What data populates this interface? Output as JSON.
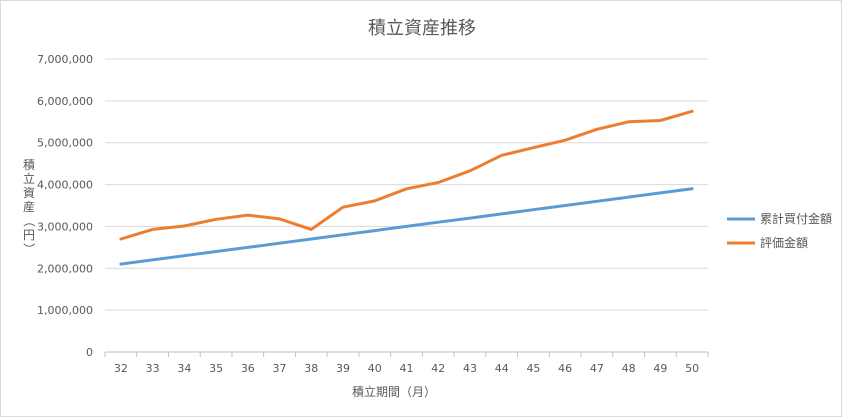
{
  "chart_data": {
    "type": "line",
    "title": "積立資産推移",
    "xlabel": "積立期間（月）",
    "ylabel": "積立資産（円）",
    "ylim": [
      0,
      7000000
    ],
    "y_ticks": [
      "0",
      "1,000,000",
      "2,000,000",
      "3,000,000",
      "4,000,000",
      "5,000,000",
      "6,000,000",
      "7,000,000"
    ],
    "categories": [
      "32",
      "33",
      "34",
      "35",
      "36",
      "37",
      "38",
      "39",
      "40",
      "41",
      "42",
      "43",
      "44",
      "45",
      "46",
      "47",
      "48",
      "49",
      "50"
    ],
    "grid": true,
    "legend_position": "right",
    "series": [
      {
        "name": "累計買付金額",
        "color": "#5B9BD5",
        "values": [
          2100000,
          2200000,
          2300000,
          2400000,
          2500000,
          2600000,
          2700000,
          2800000,
          2900000,
          3000000,
          3100000,
          3200000,
          3300000,
          3400000,
          3500000,
          3600000,
          3700000,
          3800000,
          3900000
        ]
      },
      {
        "name": "評価金額",
        "color": "#ED7D31",
        "values": [
          2700000,
          2930000,
          3010000,
          3170000,
          3270000,
          3180000,
          2930000,
          3460000,
          3610000,
          3900000,
          4050000,
          4330000,
          4700000,
          4880000,
          5060000,
          5320000,
          5500000,
          5530000,
          5750000
        ]
      }
    ]
  }
}
